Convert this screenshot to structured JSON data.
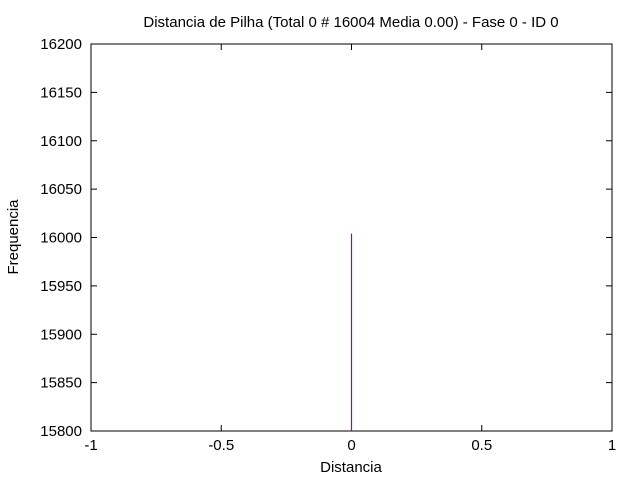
{
  "chart_data": {
    "type": "bar",
    "title": "Distancia de Pilha (Total 0 # 16004 Media 0.00) - Fase  0 - ID 0",
    "xlabel": "Distancia",
    "ylabel": "Frequencia",
    "xlim": [
      -1,
      1
    ],
    "ylim": [
      15800,
      16200
    ],
    "x_ticks": [
      "-1",
      "-0.5",
      "0",
      "0.5",
      "1"
    ],
    "y_ticks": [
      "15800",
      "15850",
      "15900",
      "15950",
      "16000",
      "16050",
      "16100",
      "16150",
      "16200"
    ],
    "grid": false,
    "series": [
      {
        "color": "#9400d3",
        "x": [
          0
        ],
        "values": [
          16004
        ]
      }
    ]
  }
}
